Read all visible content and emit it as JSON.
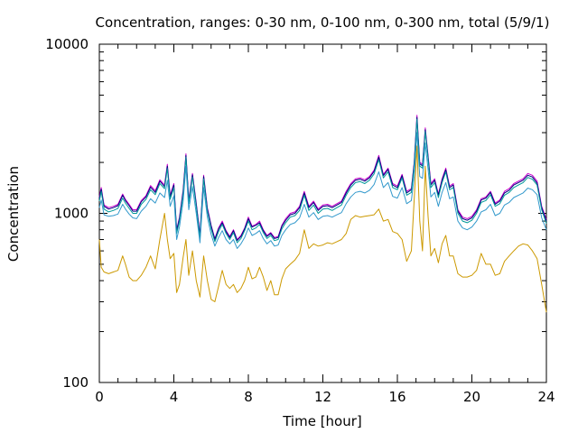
{
  "chart_data": {
    "type": "line",
    "title": "Concentration, ranges: 0-30 nm, 0-100 nm, 0-300 nm, total (5/9/1)",
    "xlabel": "Time [hour]",
    "ylabel": "Concentration",
    "xlim": [
      0,
      24
    ],
    "ylim": [
      100,
      10000
    ],
    "yscale": "log",
    "grid": false,
    "legend": "none",
    "x_ticks": [
      0,
      4,
      8,
      12,
      16,
      20,
      24
    ],
    "x_tick_labels": [
      "0",
      "4",
      "8",
      "12",
      "16",
      "20",
      "24"
    ],
    "y_ticks": [
      100,
      1000,
      10000
    ],
    "y_tick_labels": [
      "100",
      "1000",
      "10000"
    ],
    "x": [
      0,
      0.1,
      0.25,
      0.5,
      0.75,
      1.0,
      1.25,
      1.4,
      1.6,
      1.8,
      2.0,
      2.25,
      2.5,
      2.75,
      3.0,
      3.25,
      3.5,
      3.65,
      3.8,
      4.0,
      4.15,
      4.3,
      4.5,
      4.65,
      4.8,
      5.0,
      5.2,
      5.4,
      5.6,
      5.8,
      6.0,
      6.2,
      6.4,
      6.6,
      6.8,
      7.0,
      7.2,
      7.4,
      7.6,
      7.8,
      8.0,
      8.2,
      8.4,
      8.6,
      8.8,
      9.0,
      9.2,
      9.4,
      9.6,
      9.8,
      10.0,
      10.25,
      10.5,
      10.75,
      11.0,
      11.25,
      11.5,
      11.75,
      12.0,
      12.25,
      12.5,
      12.75,
      13.0,
      13.25,
      13.5,
      13.75,
      14.0,
      14.25,
      14.5,
      14.75,
      15.0,
      15.25,
      15.5,
      15.75,
      16.0,
      16.25,
      16.5,
      16.75,
      16.9,
      17.05,
      17.2,
      17.35,
      17.5,
      17.65,
      17.8,
      18.0,
      18.2,
      18.4,
      18.6,
      18.8,
      19.0,
      19.25,
      19.5,
      19.75,
      20.0,
      20.25,
      20.5,
      20.75,
      21.0,
      21.25,
      21.5,
      21.75,
      22.0,
      22.25,
      22.5,
      22.75,
      23.0,
      23.25,
      23.5,
      23.75,
      24.0
    ],
    "series": [
      {
        "color": "#cc00cc",
        "values": [
          1250,
          1420,
          1120,
          1080,
          1100,
          1130,
          1300,
          1210,
          1130,
          1050,
          1050,
          1190,
          1270,
          1460,
          1360,
          1580,
          1470,
          1950,
          1280,
          1500,
          800,
          950,
          1380,
          2250,
          1200,
          1720,
          1150,
          750,
          1680,
          1080,
          850,
          710,
          820,
          900,
          790,
          730,
          800,
          700,
          740,
          820,
          950,
          840,
          860,
          900,
          800,
          740,
          770,
          720,
          730,
          850,
          930,
          1000,
          1020,
          1100,
          1350,
          1100,
          1180,
          1060,
          1120,
          1130,
          1100,
          1140,
          1180,
          1350,
          1500,
          1600,
          1620,
          1580,
          1650,
          1800,
          2200,
          1700,
          1850,
          1500,
          1450,
          1700,
          1350,
          1400,
          2000,
          3800,
          2000,
          1950,
          3200,
          2200,
          1500,
          1600,
          1300,
          1600,
          1850,
          1450,
          1500,
          1050,
          950,
          930,
          960,
          1050,
          1220,
          1250,
          1350,
          1150,
          1200,
          1350,
          1400,
          1500,
          1550,
          1600,
          1720,
          1680,
          1550,
          1100,
          920
        ]
      },
      {
        "color": "#000080",
        "values": [
          1220,
          1390,
          1100,
          1060,
          1080,
          1110,
          1280,
          1190,
          1110,
          1030,
          1030,
          1170,
          1250,
          1430,
          1330,
          1550,
          1440,
          1900,
          1250,
          1470,
          790,
          930,
          1350,
          2200,
          1180,
          1690,
          1130,
          740,
          1650,
          1060,
          840,
          700,
          810,
          880,
          780,
          720,
          790,
          690,
          730,
          810,
          930,
          830,
          850,
          880,
          790,
          730,
          760,
          710,
          720,
          840,
          910,
          980,
          1000,
          1080,
          1320,
          1080,
          1160,
          1040,
          1100,
          1110,
          1080,
          1120,
          1160,
          1320,
          1470,
          1570,
          1590,
          1550,
          1620,
          1770,
          2150,
          1670,
          1820,
          1470,
          1420,
          1670,
          1320,
          1380,
          1960,
          3700,
          1960,
          1910,
          3120,
          2150,
          1470,
          1570,
          1280,
          1570,
          1810,
          1420,
          1470,
          1030,
          930,
          910,
          940,
          1030,
          1200,
          1230,
          1330,
          1130,
          1180,
          1320,
          1370,
          1470,
          1520,
          1570,
          1680,
          1640,
          1510,
          1080,
          900
        ]
      },
      {
        "color": "#009999",
        "values": [
          1180,
          1350,
          1060,
          1020,
          1040,
          1070,
          1230,
          1150,
          1070,
          1000,
          1000,
          1130,
          1210,
          1380,
          1290,
          1500,
          1400,
          1840,
          1210,
          1420,
          760,
          900,
          1300,
          2150,
          1140,
          1640,
          1100,
          710,
          1600,
          1030,
          810,
          680,
          780,
          860,
          760,
          700,
          770,
          670,
          710,
          790,
          900,
          800,
          820,
          860,
          770,
          710,
          740,
          690,
          700,
          810,
          880,
          950,
          970,
          1040,
          1280,
          1040,
          1120,
          1000,
          1060,
          1070,
          1040,
          1080,
          1120,
          1280,
          1420,
          1520,
          1540,
          1500,
          1570,
          1710,
          2080,
          1620,
          1760,
          1420,
          1380,
          1620,
          1280,
          1330,
          1900,
          3600,
          1900,
          1850,
          3050,
          2100,
          1420,
          1520,
          1240,
          1520,
          1760,
          1380,
          1420,
          1000,
          900,
          880,
          910,
          1000,
          1160,
          1190,
          1290,
          1100,
          1140,
          1280,
          1330,
          1420,
          1470,
          1520,
          1630,
          1590,
          1470,
          1050,
          870
        ]
      },
      {
        "color": "#3399cc",
        "values": [
          1080,
          1200,
          980,
          960,
          970,
          990,
          1130,
          1060,
          990,
          940,
          930,
          1030,
          1100,
          1220,
          1150,
          1320,
          1240,
          1570,
          1100,
          1270,
          700,
          830,
          1180,
          1900,
          1050,
          1440,
          1000,
          670,
          1420,
          950,
          750,
          640,
          720,
          790,
          700,
          660,
          700,
          620,
          660,
          720,
          820,
          740,
          760,
          790,
          710,
          660,
          690,
          640,
          650,
          740,
          800,
          860,
          880,
          940,
          1130,
          950,
          1010,
          920,
          960,
          970,
          950,
          980,
          1010,
          1140,
          1250,
          1330,
          1350,
          1320,
          1370,
          1480,
          1760,
          1420,
          1520,
          1260,
          1230,
          1420,
          1140,
          1190,
          1650,
          3000,
          1650,
          1610,
          2600,
          1820,
          1250,
          1330,
          1100,
          1330,
          1520,
          1220,
          1250,
          900,
          820,
          800,
          830,
          900,
          1020,
          1050,
          1130,
          970,
          1000,
          1120,
          1160,
          1240,
          1280,
          1320,
          1410,
          1380,
          1290,
          940,
          800
        ]
      },
      {
        "color": "#cc9900",
        "values": [
          700,
          480,
          450,
          440,
          450,
          460,
          560,
          500,
          420,
          400,
          400,
          430,
          480,
          560,
          470,
          700,
          1000,
          700,
          540,
          580,
          340,
          380,
          550,
          700,
          430,
          600,
          400,
          320,
          560,
          400,
          310,
          300,
          370,
          460,
          380,
          360,
          380,
          340,
          360,
          400,
          480,
          410,
          420,
          480,
          420,
          350,
          400,
          330,
          330,
          410,
          470,
          500,
          530,
          580,
          800,
          620,
          660,
          640,
          650,
          670,
          660,
          680,
          700,
          760,
          920,
          970,
          950,
          960,
          970,
          980,
          1060,
          900,
          920,
          780,
          760,
          700,
          520,
          600,
          1200,
          2500,
          900,
          600,
          1900,
          960,
          560,
          620,
          510,
          660,
          740,
          560,
          560,
          440,
          420,
          420,
          430,
          460,
          580,
          500,
          500,
          430,
          440,
          520,
          560,
          600,
          640,
          660,
          650,
          600,
          540,
          380,
          260
        ]
      }
    ]
  }
}
